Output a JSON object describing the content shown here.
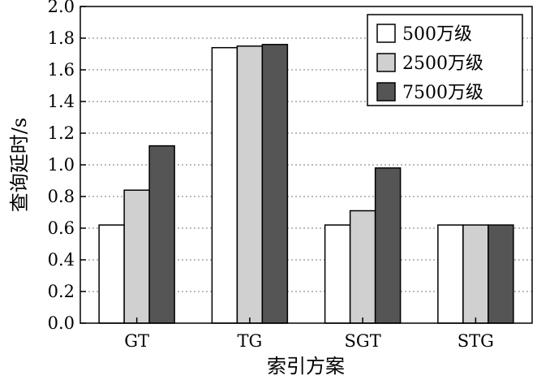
{
  "chart_data": {
    "type": "bar",
    "title": "",
    "xlabel": "索引方案",
    "ylabel": "查询延时/s",
    "categories": [
      "GT",
      "TG",
      "SGT",
      "STG"
    ],
    "series": [
      {
        "name": "500万级",
        "color": "#ffffff",
        "values": [
          0.62,
          1.74,
          0.62,
          0.62
        ]
      },
      {
        "name": "2500万级",
        "color": "#d0d0d0",
        "values": [
          0.84,
          1.75,
          0.71,
          0.62
        ]
      },
      {
        "name": "7500万级",
        "color": "#555555",
        "values": [
          1.12,
          1.76,
          0.98,
          0.62
        ]
      }
    ],
    "ylim": [
      0,
      2.0
    ],
    "yticks": [
      "0.0",
      "0.2",
      "0.4",
      "0.6",
      "0.8",
      "1.0",
      "1.2",
      "1.4",
      "1.6",
      "1.8",
      "2.0"
    ],
    "grid": "horizontal dotted",
    "legend_position": "top-right"
  }
}
